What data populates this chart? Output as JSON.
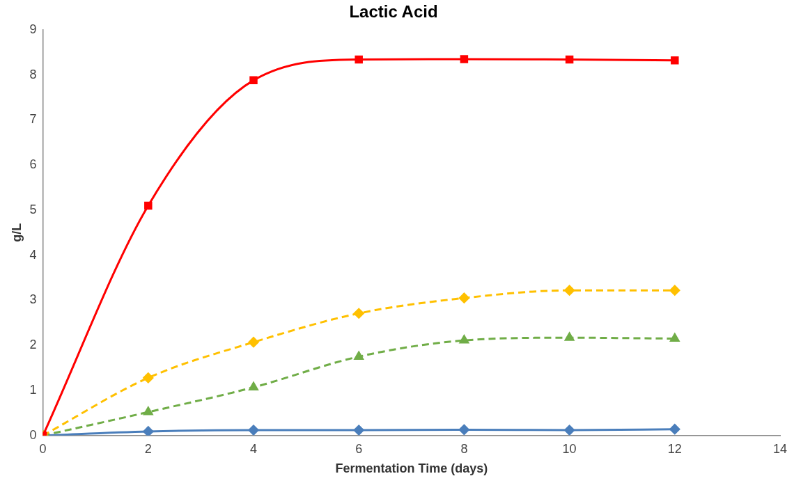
{
  "chart_data": {
    "type": "line",
    "title": "Lactic Acid",
    "xlabel": "Fermentation Time (days)",
    "ylabel": "g/L",
    "x": [
      0,
      2,
      4,
      6,
      8,
      10,
      12
    ],
    "series": [
      {
        "color": "#ff0000",
        "values": [
          0,
          5.1,
          7.88,
          8.34,
          8.35,
          8.34,
          8.32
        ],
        "marker": "square",
        "line_style": "solid"
      },
      {
        "color": "#ffc000",
        "values": [
          0,
          1.28,
          2.07,
          2.71,
          3.05,
          3.22,
          3.22
        ],
        "marker": "diamond",
        "line_style": "dashed"
      },
      {
        "color": "#70ad47",
        "values": [
          0,
          0.52,
          1.07,
          1.75,
          2.11,
          2.17,
          2.15
        ],
        "marker": "triangle",
        "line_style": "dashed"
      },
      {
        "color": "#4a7ebb",
        "values": [
          0,
          0.09,
          0.12,
          0.12,
          0.13,
          0.12,
          0.14
        ],
        "marker": "diamond",
        "line_style": "solid"
      }
    ],
    "xlim": [
      0,
      14
    ],
    "xticks": [
      0,
      2,
      4,
      6,
      8,
      10,
      12,
      14
    ],
    "ylim": [
      0,
      9
    ],
    "yticks": [
      0,
      1,
      2,
      3,
      4,
      5,
      6,
      7,
      8,
      9
    ],
    "grid": false,
    "legend": false
  }
}
